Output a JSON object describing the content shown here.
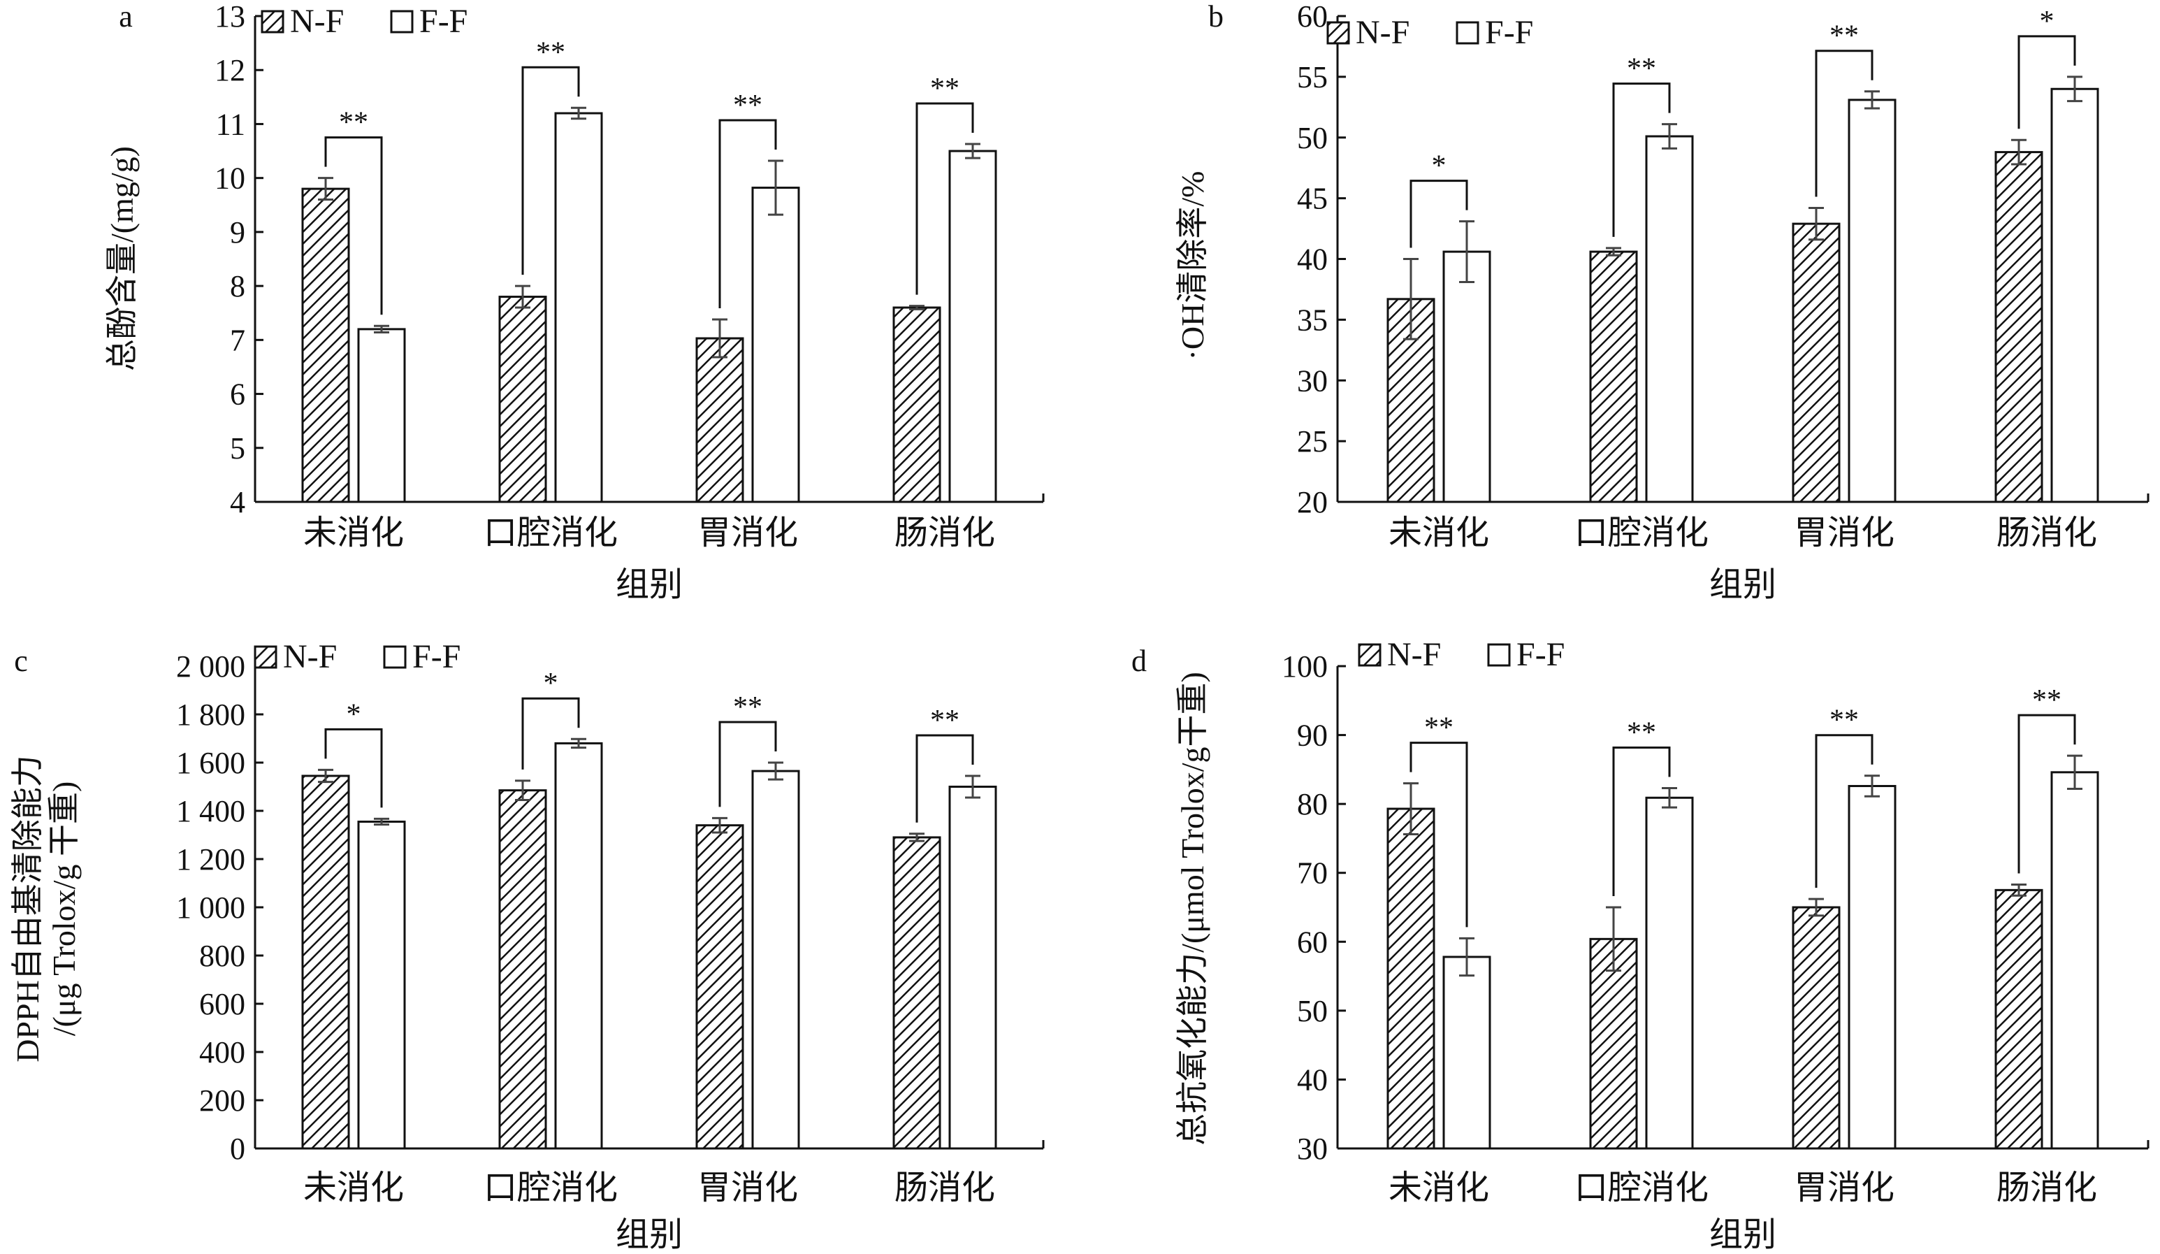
{
  "chart_data": [
    {
      "panel": "a",
      "type": "bar",
      "ylabel": "总酚含量/(mg/g)",
      "xlabel": "组别",
      "categories": [
        "未消化",
        "口腔消化",
        "胃消化",
        "肠消化"
      ],
      "ylim": [
        4,
        13
      ],
      "yticks": [
        4,
        5,
        6,
        7,
        8,
        9,
        10,
        11,
        12,
        13
      ],
      "ytick_labels": [
        "4",
        "5",
        "6",
        "7",
        "8",
        "9",
        "10",
        "11",
        "12",
        "13"
      ],
      "legend": [
        "N-F",
        "F-F"
      ],
      "series": [
        {
          "name": "N-F",
          "values": [
            9.8,
            7.8,
            7.03,
            7.6
          ],
          "errors": [
            0.2,
            0.2,
            0.35,
            0.03
          ]
        },
        {
          "name": "F-F",
          "values": [
            7.2,
            11.2,
            9.82,
            10.5
          ],
          "errors": [
            0.06,
            0.1,
            0.5,
            0.13
          ]
        }
      ],
      "significance": [
        "**",
        "**",
        "**",
        "**"
      ]
    },
    {
      "panel": "b",
      "type": "bar",
      "ylabel": "·OH清除率/%",
      "xlabel": "组别",
      "categories": [
        "未消化",
        "口腔消化",
        "胃消化",
        "肠消化"
      ],
      "ylim": [
        20,
        60
      ],
      "yticks": [
        20,
        25,
        30,
        35,
        40,
        45,
        50,
        55,
        60
      ],
      "ytick_labels": [
        "20",
        "25",
        "30",
        "35",
        "40",
        "45",
        "50",
        "55",
        "60"
      ],
      "legend": [
        "N-F",
        "F-F"
      ],
      "series": [
        {
          "name": "N-F",
          "values": [
            36.7,
            40.6,
            42.9,
            48.8
          ],
          "errors": [
            3.3,
            0.3,
            1.3,
            1.0
          ]
        },
        {
          "name": "F-F",
          "values": [
            40.6,
            50.1,
            53.1,
            54.0
          ],
          "errors": [
            2.5,
            1.0,
            0.7,
            1.0
          ]
        }
      ],
      "significance": [
        "*",
        "**",
        "**",
        "*"
      ]
    },
    {
      "panel": "c",
      "type": "bar",
      "ylabel": "DPPH自由基清除能力",
      "ylabel2": "/(μg Trolox/g 干重)",
      "xlabel": "组别",
      "categories": [
        "未消化",
        "口腔消化",
        "胃消化",
        "肠消化"
      ],
      "ylim": [
        0,
        2000
      ],
      "yticks": [
        0,
        200,
        400,
        600,
        800,
        1000,
        1200,
        1400,
        1600,
        1800,
        2000
      ],
      "ytick_labels": [
        "0",
        "200",
        "400",
        "600",
        "800",
        "1 000",
        "1 200",
        "1 400",
        "1 600",
        "1 800",
        "2 000"
      ],
      "legend": [
        "N-F",
        "F-F"
      ],
      "series": [
        {
          "name": "N-F",
          "values": [
            1545,
            1485,
            1340,
            1290
          ],
          "errors": [
            25,
            40,
            30,
            15
          ]
        },
        {
          "name": "F-F",
          "values": [
            1355,
            1680,
            1565,
            1500
          ],
          "errors": [
            12,
            18,
            35,
            45
          ]
        }
      ],
      "significance": [
        "*",
        "*",
        "**",
        "**"
      ]
    },
    {
      "panel": "d",
      "type": "bar",
      "ylabel": "总抗氧化能力/(μmol Trolox/g干重)",
      "xlabel": "组别",
      "categories": [
        "未消化",
        "口腔消化",
        "胃消化",
        "肠消化"
      ],
      "ylim": [
        30,
        100
      ],
      "yticks": [
        30,
        40,
        50,
        60,
        70,
        80,
        90,
        100
      ],
      "ytick_labels": [
        "30",
        "40",
        "50",
        "60",
        "70",
        "80",
        "90",
        "100"
      ],
      "legend": [
        "N-F",
        "F-F"
      ],
      "series": [
        {
          "name": "N-F",
          "values": [
            79.3,
            60.4,
            65.0,
            67.5
          ],
          "errors": [
            3.7,
            4.6,
            1.2,
            0.8
          ]
        },
        {
          "name": "F-F",
          "values": [
            57.8,
            80.9,
            82.6,
            84.6
          ],
          "errors": [
            2.7,
            1.4,
            1.5,
            2.4
          ]
        }
      ],
      "significance": [
        "**",
        "**",
        "**",
        "**"
      ]
    }
  ]
}
